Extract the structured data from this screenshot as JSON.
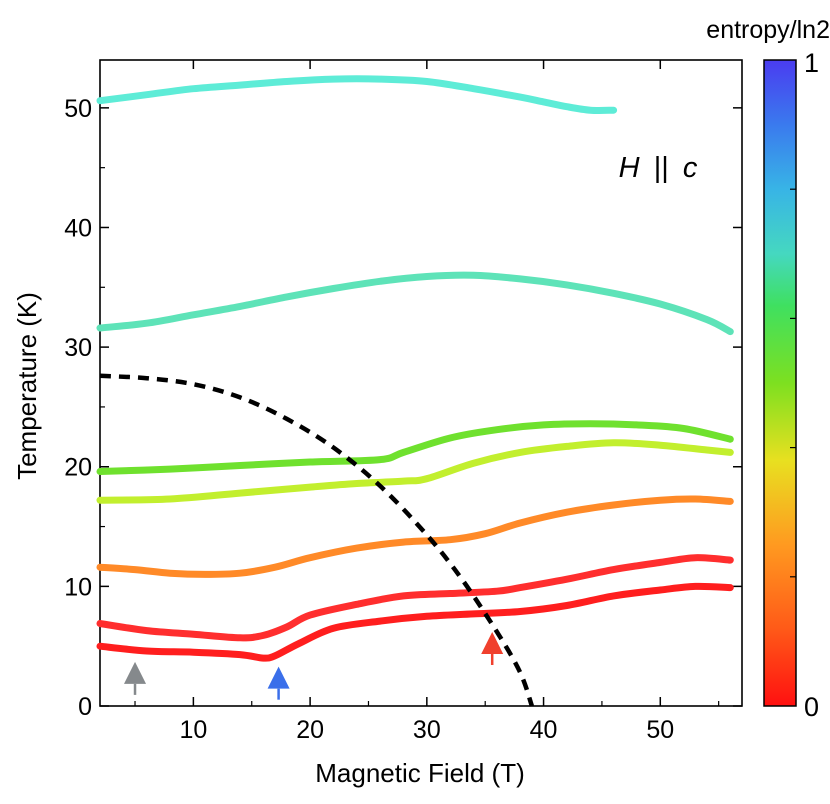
{
  "chart_data": {
    "type": "line",
    "xlabel": "Magnetic Field (T)",
    "ylabel": "Temperature (K)",
    "xlim": [
      2,
      57
    ],
    "ylim": [
      0,
      54
    ],
    "xticks": [
      10,
      20,
      30,
      40,
      50
    ],
    "yticks": [
      0,
      10,
      20,
      30,
      40,
      50
    ],
    "annotation": {
      "label": "H || c",
      "prefix": "H",
      "suffix": "c",
      "separator": "||"
    },
    "colorbar": {
      "title": "entropy/ln2",
      "min_label": "0",
      "max_label": "1",
      "min": 0,
      "max": 1
    },
    "series": [
      {
        "name": "isentrope-1",
        "color": "#ff1e1e",
        "x": [
          2,
          6,
          10,
          14,
          16,
          17,
          19,
          22,
          26,
          30,
          34,
          38,
          42,
          46,
          50,
          53,
          56
        ],
        "y": [
          5.0,
          4.6,
          4.5,
          4.3,
          4.0,
          4.2,
          5.2,
          6.5,
          7.1,
          7.5,
          7.7,
          7.9,
          8.4,
          9.2,
          9.7,
          10.0,
          9.9
        ]
      },
      {
        "name": "isentrope-2",
        "color": "#ff2e2e",
        "x": [
          2,
          6,
          10,
          14,
          16,
          18,
          20,
          24,
          28,
          32,
          36,
          38,
          42,
          46,
          50,
          53,
          56
        ],
        "y": [
          6.9,
          6.3,
          6.0,
          5.7,
          5.9,
          6.6,
          7.6,
          8.5,
          9.2,
          9.4,
          9.6,
          9.9,
          10.6,
          11.4,
          12.0,
          12.4,
          12.2
        ]
      },
      {
        "name": "isentrope-3",
        "color": "#ff8a28",
        "x": [
          2,
          5,
          8,
          11,
          14,
          17,
          20,
          24,
          28,
          32,
          35,
          38,
          42,
          46,
          50,
          53,
          56
        ],
        "y": [
          11.6,
          11.4,
          11.1,
          11.0,
          11.1,
          11.6,
          12.4,
          13.2,
          13.7,
          13.9,
          14.4,
          15.3,
          16.2,
          16.8,
          17.2,
          17.3,
          17.1
        ]
      },
      {
        "name": "isentrope-4",
        "color": "#c2ef2e",
        "x": [
          2,
          8,
          14,
          20,
          24,
          28,
          30,
          34,
          38,
          42,
          46,
          50,
          54,
          56
        ],
        "y": [
          17.2,
          17.3,
          17.8,
          18.3,
          18.6,
          18.8,
          19.0,
          20.3,
          21.2,
          21.7,
          22.0,
          21.8,
          21.4,
          21.2
        ]
      },
      {
        "name": "isentrope-5",
        "color": "#6fe12e",
        "x": [
          2,
          8,
          14,
          20,
          26,
          28,
          32,
          36,
          40,
          44,
          48,
          52,
          56
        ],
        "y": [
          19.6,
          19.8,
          20.1,
          20.4,
          20.6,
          21.2,
          22.4,
          23.1,
          23.5,
          23.6,
          23.5,
          23.2,
          22.3
        ]
      },
      {
        "name": "isentrope-6",
        "color": "#5ee3b8",
        "x": [
          2,
          6,
          10,
          14,
          18,
          22,
          26,
          30,
          34,
          38,
          42,
          46,
          50,
          54,
          56
        ],
        "y": [
          31.6,
          32.0,
          32.7,
          33.4,
          34.2,
          34.9,
          35.5,
          35.9,
          36.0,
          35.7,
          35.2,
          34.5,
          33.6,
          32.3,
          31.3
        ]
      },
      {
        "name": "isentrope-7",
        "color": "#5eecd7",
        "x": [
          2,
          6,
          10,
          14,
          18,
          22,
          26,
          30,
          34,
          38,
          40,
          42,
          44,
          46
        ],
        "y": [
          50.6,
          51.1,
          51.6,
          51.9,
          52.2,
          52.4,
          52.4,
          52.2,
          51.6,
          50.9,
          50.5,
          50.1,
          49.8,
          49.8
        ]
      }
    ],
    "phase_boundary": {
      "name": "phase-boundary",
      "style": "dashed",
      "color": "#000000",
      "x": [
        2,
        6,
        10,
        14,
        18,
        22,
        26,
        30,
        33,
        36,
        38,
        39
      ],
      "y": [
        27.6,
        27.4,
        26.9,
        25.8,
        24.0,
        21.6,
        18.4,
        14.3,
        10.6,
        6.2,
        2.8,
        0
      ]
    },
    "markers": [
      {
        "name": "gray-arrow",
        "x": 5.0,
        "y": 2.6,
        "color": "#85898c"
      },
      {
        "name": "blue-arrow",
        "x": 17.3,
        "y": 2.2,
        "color": "#3a6fea"
      },
      {
        "name": "red-arrow",
        "x": 35.6,
        "y": 5.1,
        "color": "#f0402d"
      }
    ]
  }
}
